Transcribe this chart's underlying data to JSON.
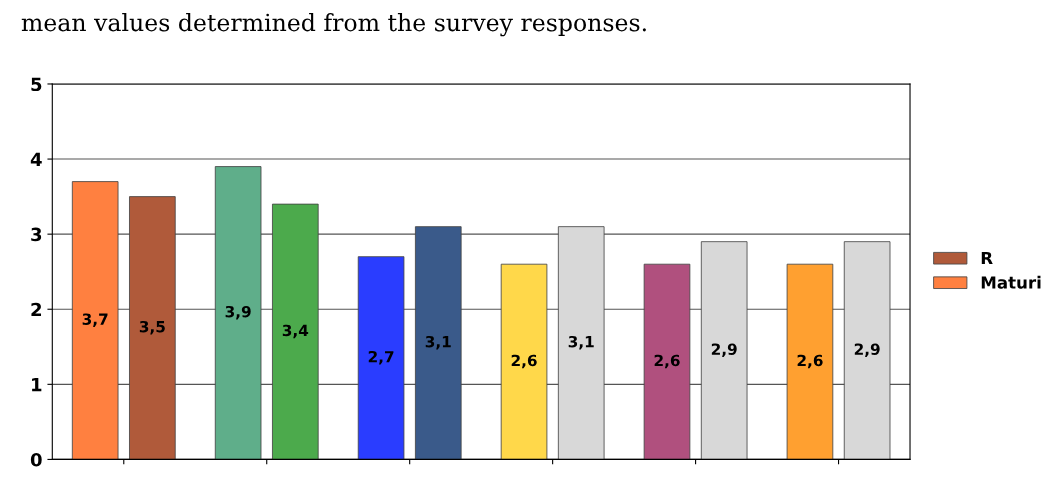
{
  "chart_data": {
    "type": "bar",
    "title": "mean values determined from the survey responses.",
    "categories": [
      null,
      null,
      null,
      null,
      null,
      null
    ],
    "series": [
      {
        "name": "Maturi",
        "colors": [
          "#ff8040",
          "#5fae8a",
          "#2a3dff",
          "#ffd84a",
          "#b0507e",
          "#ffa030"
        ],
        "values": [
          3.7,
          3.9,
          2.7,
          2.6,
          2.6,
          2.6
        ],
        "value_labels": [
          "3,7",
          "3,9",
          "2,7",
          "2,6",
          "2,6",
          "2,6"
        ]
      },
      {
        "name": "R",
        "colors": [
          "#b05a3a",
          "#4caa4c",
          "#3a5a8a",
          "#d8d8d8",
          "#d8d8d8",
          "#d8d8d8"
        ],
        "values": [
          3.5,
          3.4,
          3.1,
          3.1,
          2.9,
          2.9
        ],
        "value_labels": [
          "3,5",
          "3,4",
          "3,1",
          "3,1",
          "2,9",
          "2,9"
        ]
      }
    ],
    "ylim": [
      0,
      5
    ],
    "yticks": [
      0,
      1,
      2,
      3,
      4,
      5
    ],
    "grid": "y",
    "legend": "right"
  }
}
